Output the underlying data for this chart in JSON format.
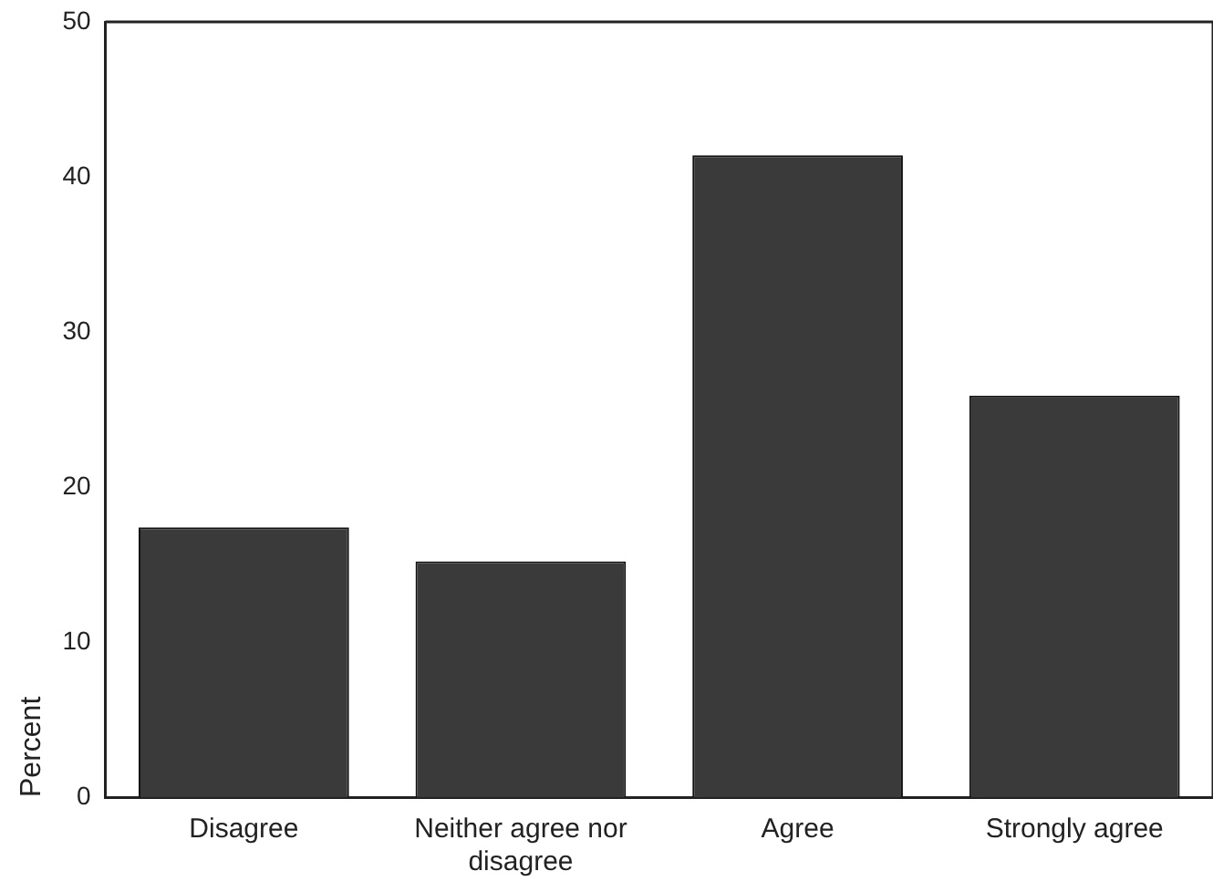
{
  "chart_data": {
    "type": "bar",
    "ylabel": "Percent",
    "categories": [
      "Disagree",
      "Neither agree nor disagree",
      "Agree",
      "Strongly agree"
    ],
    "values": [
      17.4,
      15.2,
      41.4,
      25.9
    ],
    "color": "#3a3a3a",
    "ylim": [
      0,
      50
    ],
    "yticks": [
      0,
      10,
      20,
      30,
      40,
      50
    ],
    "grid": false,
    "legend": false
  }
}
